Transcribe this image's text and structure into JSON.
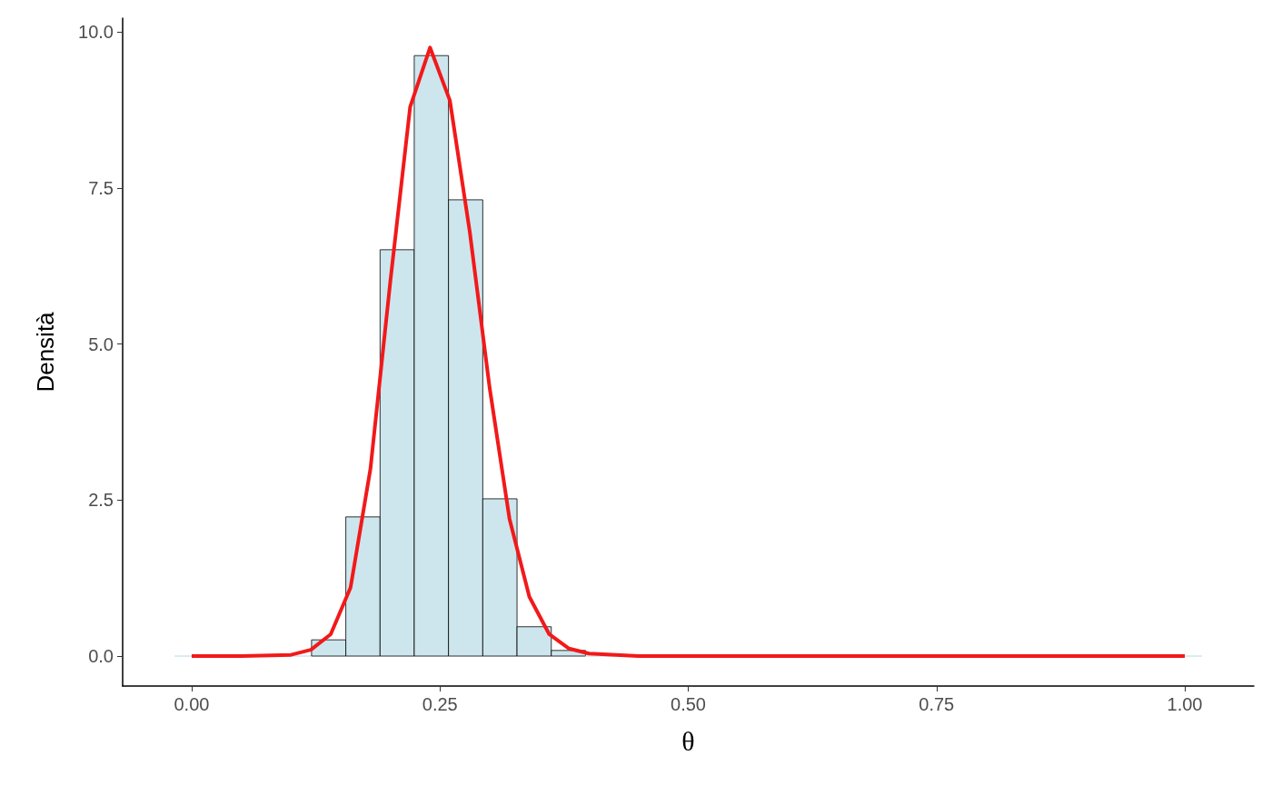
{
  "chart_data": {
    "type": "histogram",
    "xlabel": "θ",
    "ylabel": "Densità",
    "bins": [
      -0.0172,
      0.0172,
      0.0517,
      0.0862,
      0.1207,
      0.1552,
      0.1897,
      0.2241,
      0.2586,
      0.2931,
      0.3276,
      0.3621,
      0.3966,
      0.431,
      0.4655,
      0.5,
      0.5345,
      0.569,
      0.6034,
      0.6379,
      0.6724,
      0.7069,
      0.7414,
      0.7759,
      0.8103,
      0.8448,
      0.8793,
      0.9138,
      0.9483,
      0.9828,
      1.0172
    ],
    "values": [
      0,
      0,
      0,
      0,
      0.26,
      2.23,
      6.51,
      9.62,
      7.31,
      2.52,
      0.47,
      0.09,
      0,
      0,
      0,
      0,
      0,
      0,
      0,
      0,
      0,
      0,
      0,
      0,
      0,
      0,
      0,
      0,
      0,
      0
    ],
    "color": "#cde6ed",
    "series": [
      {
        "type": "line",
        "color": "#f2191a",
        "x": [
          0,
          0.05,
          0.1,
          0.12,
          0.14,
          0.16,
          0.18,
          0.2,
          0.22,
          0.24,
          0.26,
          0.28,
          0.3,
          0.32,
          0.34,
          0.36,
          0.38,
          0.4,
          0.45,
          0.5,
          0.75,
          1.0
        ],
        "values": [
          0,
          0,
          0.02,
          0.1,
          0.35,
          1.1,
          3.0,
          6.0,
          8.8,
          9.75,
          8.9,
          6.8,
          4.3,
          2.2,
          0.95,
          0.35,
          0.12,
          0.04,
          0,
          0,
          0,
          0
        ]
      }
    ],
    "xlim": [
      -0.0695,
      1.0695
    ],
    "xticks": [
      {
        "value": 0,
        "label": "0.00"
      },
      {
        "value": 0.25,
        "label": "0.25"
      },
      {
        "value": 0.5,
        "label": "0.50"
      },
      {
        "value": 0.75,
        "label": "0.75"
      },
      {
        "value": 1,
        "label": "1.00"
      }
    ],
    "ylim": [
      -0.48,
      10.22
    ],
    "yticks": [
      {
        "value": 0,
        "label": "0.0"
      },
      {
        "value": 2.5,
        "label": "2.5"
      },
      {
        "value": 5,
        "label": "5.0"
      },
      {
        "value": 7.5,
        "label": "7.5"
      },
      {
        "value": 10,
        "label": "10.0"
      }
    ],
    "grid": false
  }
}
